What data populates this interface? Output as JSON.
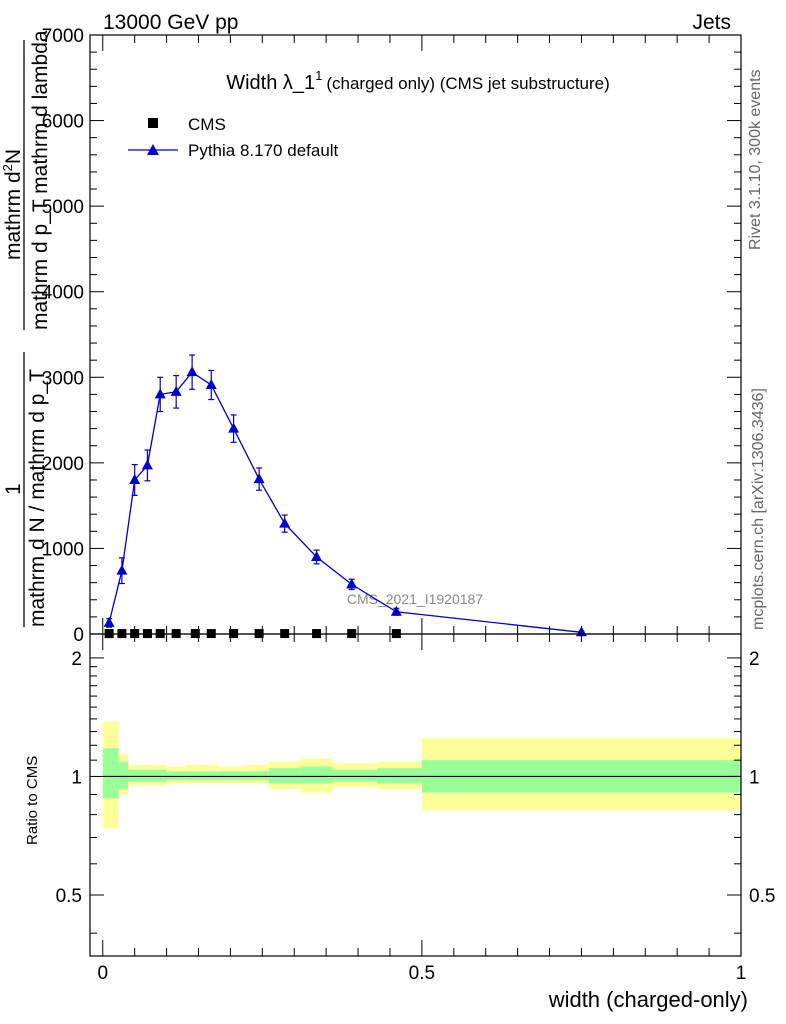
{
  "header": {
    "energy_label": "13000 GeV pp",
    "process_label": "Jets"
  },
  "side_labels": {
    "rivet": "Rivet 3.1.10,  300k events",
    "mcplots": "mcplots.cern.ch [arXiv:1306.3436]"
  },
  "watermark": "CMS_2021_I1920187",
  "chart_data": [
    {
      "type": "line",
      "panel": "main",
      "title": "Width λ_1",
      "title_sup": "1",
      "title_suffix": "(charged only) (CMS jet substructure)",
      "ylabel_num": "mathrm d",
      "ylabel_num_sup": "2",
      "ylabel_num_tail": "N",
      "ylabel_den": "mathrm d p_T mathrm d lambda",
      "ylabel_prefix_num": "1",
      "ylabel_prefix_den": "mathrm d N / mathrm d p_T",
      "ylim": [
        0,
        7000
      ],
      "yticks": [
        "0",
        "1000",
        "2000",
        "3000",
        "4000",
        "5000",
        "6000",
        "7000"
      ],
      "xlim": [
        -0.02,
        1.0
      ],
      "legend": {
        "position": "top-left",
        "entries": [
          {
            "name": "CMS",
            "marker": "square",
            "color": "#000000"
          },
          {
            "name": "Pythia 8.170 default",
            "marker": "triangle",
            "color": "#0000cc"
          }
        ]
      },
      "series": [
        {
          "name": "CMS",
          "x": [
            0.01,
            0.03,
            0.05,
            0.07,
            0.09,
            0.115,
            0.145,
            0.17,
            0.205,
            0.245,
            0.285,
            0.335,
            0.39,
            0.46
          ],
          "values": [
            5,
            5,
            5,
            5,
            5,
            5,
            5,
            5,
            5,
            5,
            5,
            5,
            5,
            5
          ]
        },
        {
          "name": "Pythia 8.170 default",
          "x": [
            0.01,
            0.03,
            0.05,
            0.07,
            0.09,
            0.115,
            0.14,
            0.17,
            0.205,
            0.245,
            0.285,
            0.335,
            0.39,
            0.46,
            0.75
          ],
          "values": [
            130,
            740,
            1800,
            1970,
            2800,
            2830,
            3060,
            2910,
            2400,
            1810,
            1290,
            900,
            580,
            260,
            20
          ],
          "errors": [
            50,
            150,
            180,
            180,
            200,
            190,
            200,
            170,
            160,
            130,
            100,
            80,
            60,
            40,
            10
          ]
        }
      ]
    },
    {
      "type": "area",
      "panel": "ratio",
      "ylabel": "Ratio to CMS",
      "xlabel": "width (charged-only)",
      "ylim": [
        0.35,
        2.3
      ],
      "yticks": [
        "0.5",
        "1",
        "2"
      ],
      "xticks": [
        "0",
        "0.5",
        "1"
      ],
      "xlim": [
        -0.02,
        1.0
      ],
      "bands": [
        {
          "x0": 0.0,
          "x1": 0.025,
          "inner": [
            0.88,
            1.18
          ],
          "outer": [
            0.74,
            1.38
          ]
        },
        {
          "x0": 0.025,
          "x1": 0.04,
          "inner": [
            0.93,
            1.09
          ],
          "outer": [
            0.9,
            1.14
          ]
        },
        {
          "x0": 0.04,
          "x1": 0.1,
          "inner": [
            0.97,
            1.04
          ],
          "outer": [
            0.95,
            1.07
          ]
        },
        {
          "x0": 0.1,
          "x1": 0.13,
          "inner": [
            0.98,
            1.03
          ],
          "outer": [
            0.96,
            1.06
          ]
        },
        {
          "x0": 0.13,
          "x1": 0.18,
          "inner": [
            0.98,
            1.03
          ],
          "outer": [
            0.96,
            1.07
          ]
        },
        {
          "x0": 0.18,
          "x1": 0.22,
          "inner": [
            0.98,
            1.03
          ],
          "outer": [
            0.96,
            1.06
          ]
        },
        {
          "x0": 0.22,
          "x1": 0.26,
          "inner": [
            0.98,
            1.03
          ],
          "outer": [
            0.96,
            1.07
          ]
        },
        {
          "x0": 0.26,
          "x1": 0.31,
          "inner": [
            0.96,
            1.05
          ],
          "outer": [
            0.93,
            1.09
          ]
        },
        {
          "x0": 0.31,
          "x1": 0.36,
          "inner": [
            0.96,
            1.06
          ],
          "outer": [
            0.91,
            1.11
          ]
        },
        {
          "x0": 0.36,
          "x1": 0.43,
          "inner": [
            0.97,
            1.04
          ],
          "outer": [
            0.94,
            1.08
          ]
        },
        {
          "x0": 0.43,
          "x1": 0.5,
          "inner": [
            0.96,
            1.05
          ],
          "outer": [
            0.93,
            1.09
          ]
        },
        {
          "x0": 0.5,
          "x1": 1.0,
          "inner": [
            0.91,
            1.1
          ],
          "outer": [
            0.82,
            1.25
          ]
        }
      ],
      "reference_line": 1.0
    }
  ],
  "colors": {
    "cms": "#000000",
    "pythia": "#0000cc",
    "band_inner": "#99ff99",
    "band_outer": "#ffff99",
    "watermark": "#888888",
    "side_text": "#666666"
  }
}
